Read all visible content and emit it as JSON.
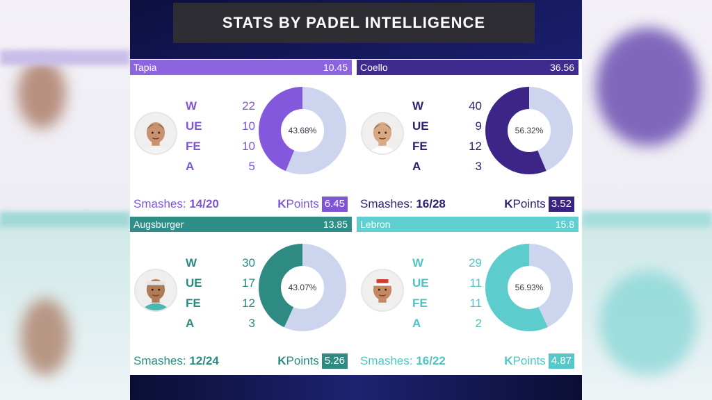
{
  "title": "STATS BY PADEL INTELLIGENCE",
  "players": [
    {
      "name": "Tapia",
      "score": "10.45",
      "stats": [
        {
          "label": "W",
          "value": "22"
        },
        {
          "label": "UE",
          "value": "10"
        },
        {
          "label": "FE",
          "value": "10"
        },
        {
          "label": "A",
          "value": "5"
        }
      ],
      "pct_label": "43.68%",
      "pct": 43.68,
      "smashes_label": "Smashes:",
      "smashes_value": "14/20",
      "kpoints_k": "K",
      "kpoints_rest": "Points",
      "kpoints_value": "6.45",
      "colors": {
        "header": "#8b64de",
        "text": "#7f55d6",
        "donut": "#8458dc",
        "donut_rest": "#cdd5ee",
        "badge": "#7f55d6"
      }
    },
    {
      "name": "Coello",
      "score": "36.56",
      "stats": [
        {
          "label": "W",
          "value": "40"
        },
        {
          "label": "UE",
          "value": "9"
        },
        {
          "label": "FE",
          "value": "12"
        },
        {
          "label": "A",
          "value": "3"
        }
      ],
      "pct_label": "56.32%",
      "pct": 56.32,
      "smashes_label": "Smashes:",
      "smashes_value": "16/28",
      "kpoints_k": "K",
      "kpoints_rest": "Points",
      "kpoints_value": "3.52",
      "colors": {
        "header": "#3f2a8e",
        "text": "#2e1f6f",
        "donut": "#3d2487",
        "donut_rest": "#cdd5ee",
        "badge": "#3a2380"
      }
    },
    {
      "name": "Augsburger",
      "score": "13.85",
      "stats": [
        {
          "label": "W",
          "value": "30"
        },
        {
          "label": "UE",
          "value": "17"
        },
        {
          "label": "FE",
          "value": "12"
        },
        {
          "label": "A",
          "value": "3"
        }
      ],
      "pct_label": "43.07%",
      "pct": 43.07,
      "smashes_label": "Smashes:",
      "smashes_value": "12/24",
      "kpoints_k": "K",
      "kpoints_rest": "Points",
      "kpoints_value": "5.26",
      "colors": {
        "header": "#2f8f88",
        "text": "#2a8a83",
        "donut": "#2e8b84",
        "donut_rest": "#cdd5ee",
        "badge": "#2e8b84"
      }
    },
    {
      "name": "Lebron",
      "score": "15.8",
      "stats": [
        {
          "label": "W",
          "value": "29"
        },
        {
          "label": "UE",
          "value": "11"
        },
        {
          "label": "FE",
          "value": "11"
        },
        {
          "label": "A",
          "value": "2"
        }
      ],
      "pct_label": "56.93%",
      "pct": 56.93,
      "smashes_label": "Smashes:",
      "smashes_value": "16/22",
      "kpoints_k": "K",
      "kpoints_rest": "Points",
      "kpoints_value": "4.87",
      "colors": {
        "header": "#5fcfcf",
        "text": "#4fc4c4",
        "donut": "#5ccccc",
        "donut_rest": "#cdd5ee",
        "badge": "#56c8c8"
      }
    }
  ]
}
